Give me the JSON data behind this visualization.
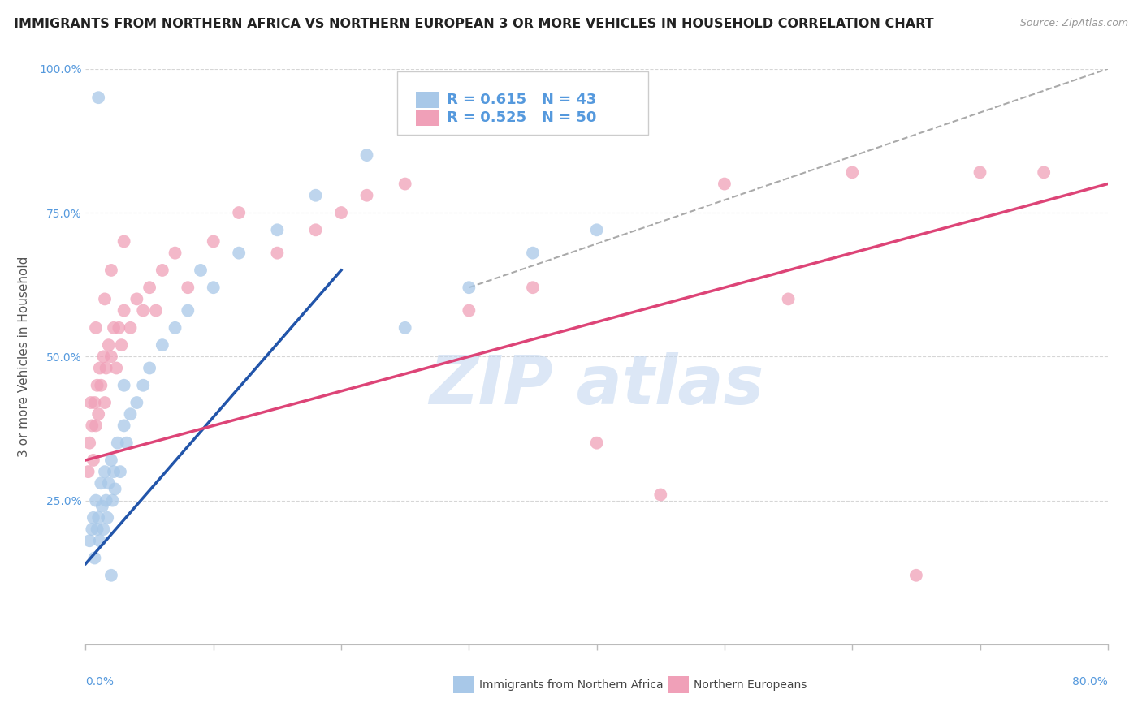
{
  "title": "IMMIGRANTS FROM NORTHERN AFRICA VS NORTHERN EUROPEAN 3 OR MORE VEHICLES IN HOUSEHOLD CORRELATION CHART",
  "source": "Source: ZipAtlas.com",
  "ylabel": "3 or more Vehicles in Household",
  "legend1_label": "Immigrants from Northern Africa",
  "legend2_label": "Northern Europeans",
  "R1": 0.615,
  "N1": 43,
  "R2": 0.525,
  "N2": 50,
  "blue_color": "#A8C8E8",
  "pink_color": "#F0A0B8",
  "blue_line_color": "#2255AA",
  "pink_line_color": "#DD4477",
  "diag_color": "#AAAAAA",
  "xmin": 0.0,
  "xmax": 80.0,
  "ymin": 0.0,
  "ymax": 100.0,
  "ytick_vals": [
    0,
    25,
    50,
    75,
    100
  ],
  "ytick_labels": [
    "",
    "25.0%",
    "50.0%",
    "75.0%",
    "100.0%"
  ],
  "tick_color": "#5599DD",
  "grid_color": "#CCCCCC",
  "title_fontsize": 11.5,
  "source_fontsize": 9,
  "label_fontsize": 11,
  "tick_fontsize": 10,
  "legend_fontsize": 13,
  "watermark_text": "ZIP atlas",
  "watermark_color": "#C5D8F0",
  "blue_x": [
    0.3,
    0.5,
    0.6,
    0.7,
    0.8,
    0.9,
    1.0,
    1.1,
    1.2,
    1.3,
    1.4,
    1.5,
    1.6,
    1.7,
    1.8,
    2.0,
    2.1,
    2.2,
    2.3,
    2.5,
    2.7,
    3.0,
    3.2,
    3.5,
    4.0,
    4.5,
    5.0,
    6.0,
    7.0,
    8.0,
    10.0,
    12.0,
    15.0,
    18.0,
    22.0,
    25.0,
    30.0,
    35.0,
    40.0,
    1.0,
    2.0,
    3.0,
    9.0
  ],
  "blue_y": [
    18,
    20,
    22,
    15,
    25,
    20,
    22,
    18,
    28,
    24,
    20,
    30,
    25,
    22,
    28,
    32,
    25,
    30,
    27,
    35,
    30,
    38,
    35,
    40,
    42,
    45,
    48,
    52,
    55,
    58,
    62,
    68,
    72,
    78,
    85,
    55,
    62,
    68,
    72,
    95,
    12,
    45,
    65
  ],
  "pink_x": [
    0.2,
    0.3,
    0.5,
    0.6,
    0.7,
    0.8,
    0.9,
    1.0,
    1.1,
    1.2,
    1.4,
    1.5,
    1.6,
    1.8,
    2.0,
    2.2,
    2.4,
    2.6,
    2.8,
    3.0,
    3.5,
    4.0,
    4.5,
    5.0,
    5.5,
    6.0,
    7.0,
    8.0,
    10.0,
    12.0,
    15.0,
    18.0,
    20.0,
    22.0,
    25.0,
    30.0,
    35.0,
    40.0,
    45.0,
    50.0,
    55.0,
    60.0,
    65.0,
    70.0,
    75.0,
    2.0,
    3.0,
    1.5,
    0.8,
    0.4
  ],
  "pink_y": [
    30,
    35,
    38,
    32,
    42,
    38,
    45,
    40,
    48,
    45,
    50,
    42,
    48,
    52,
    50,
    55,
    48,
    55,
    52,
    58,
    55,
    60,
    58,
    62,
    58,
    65,
    68,
    62,
    70,
    75,
    68,
    72,
    75,
    78,
    80,
    58,
    62,
    35,
    26,
    80,
    60,
    82,
    12,
    82,
    82,
    65,
    70,
    60,
    55,
    42
  ],
  "blue_line_x": [
    0,
    20
  ],
  "blue_line_y": [
    14,
    65
  ],
  "pink_line_x": [
    0,
    80
  ],
  "pink_line_y": [
    32,
    80
  ],
  "diag_line_x": [
    30,
    80
  ],
  "diag_line_y": [
    62,
    100
  ]
}
